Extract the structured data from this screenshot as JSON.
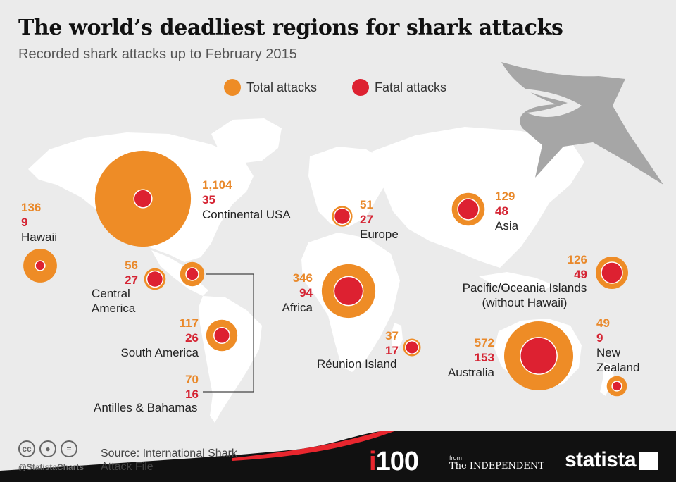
{
  "title": "The world’s deadliest regions for shark attacks",
  "subtitle": "Recorded shark attacks up to February 2015",
  "legend": {
    "total": "Total attacks",
    "fatal": "Fatal attacks"
  },
  "colors": {
    "total": "#ee8c26",
    "fatal": "#dd2131",
    "map": "#ffffff",
    "background": "#ebebeb",
    "footer": "#111111",
    "footer_accent": "#e8262e"
  },
  "chart_data": {
    "type": "bubble-map",
    "series": [
      {
        "name": "Total attacks",
        "color": "#ee8c26"
      },
      {
        "name": "Fatal attacks",
        "color": "#dd2131"
      }
    ],
    "regions": [
      {
        "id": "continental-usa",
        "name": "Continental USA",
        "total_label": "1,104",
        "fatal_label": "35",
        "total": 1104,
        "fatal": 35
      },
      {
        "id": "hawaii",
        "name": "Hawaii",
        "total_label": "136",
        "fatal_label": "9",
        "total": 136,
        "fatal": 9
      },
      {
        "id": "central-america",
        "name": "Central America",
        "total_label": "56",
        "fatal_label": "27",
        "total": 56,
        "fatal": 27
      },
      {
        "id": "south-america",
        "name": "South America",
        "total_label": "117",
        "fatal_label": "26",
        "total": 117,
        "fatal": 26
      },
      {
        "id": "antilles-bahamas",
        "name": "Antilles & Bahamas",
        "total_label": "70",
        "fatal_label": "16",
        "total": 70,
        "fatal": 16
      },
      {
        "id": "europe",
        "name": "Europe",
        "total_label": "51",
        "fatal_label": "27",
        "total": 51,
        "fatal": 27
      },
      {
        "id": "africa",
        "name": "Africa",
        "total_label": "346",
        "fatal_label": "94",
        "total": 346,
        "fatal": 94
      },
      {
        "id": "reunion-island",
        "name": "Réunion Island",
        "total_label": "37",
        "fatal_label": "17",
        "total": 37,
        "fatal": 17
      },
      {
        "id": "asia",
        "name": "Asia",
        "total_label": "129",
        "fatal_label": "48",
        "total": 129,
        "fatal": 48
      },
      {
        "id": "pacific-oceania-islands",
        "name": "Pacific/Oceania Islands",
        "name_line2": "(without Hawaii)",
        "total_label": "126",
        "fatal_label": "49",
        "total": 126,
        "fatal": 49
      },
      {
        "id": "australia",
        "name": "Australia",
        "total_label": "572",
        "fatal_label": "153",
        "total": 572,
        "fatal": 153
      },
      {
        "id": "new-zealand",
        "name": "New",
        "name_line2": "Zealand",
        "total_label": "49",
        "fatal_label": "9",
        "total": 49,
        "fatal": 9
      }
    ]
  },
  "footer": {
    "handle": "@StatistaCharts",
    "source": "Source: International Shark Attack File",
    "i100_prefix": "i",
    "i100_suffix": "100",
    "from": "from",
    "independent": "The INDEPENDENT",
    "statista": "statista"
  }
}
